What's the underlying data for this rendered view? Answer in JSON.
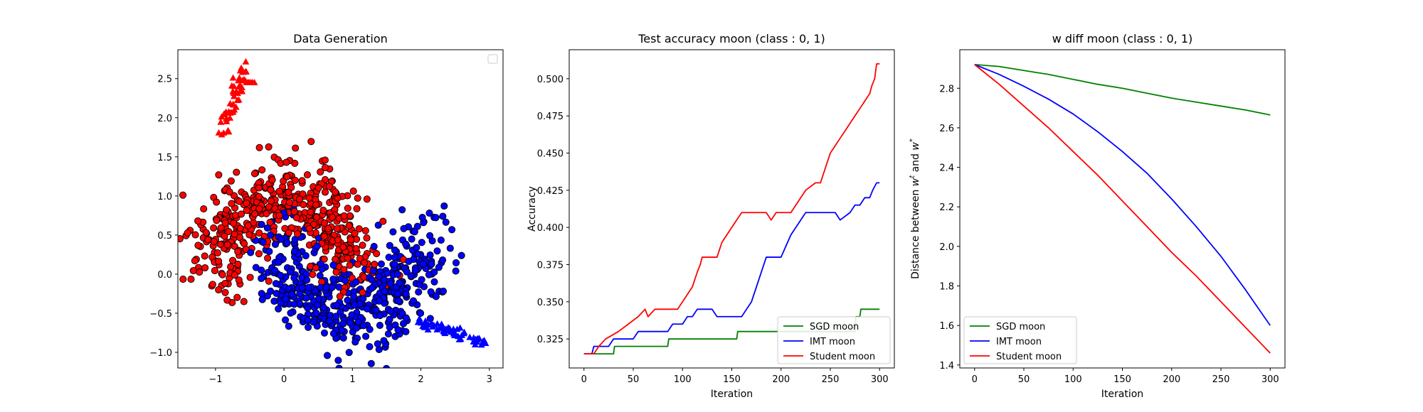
{
  "chart_data": [
    {
      "type": "scatter",
      "title": "Data Generation",
      "xlabel": "",
      "ylabel": "",
      "xlim": [
        -1.55,
        3.2
      ],
      "ylim": [
        -1.2,
        2.87
      ],
      "xticks": [
        -1,
        0,
        1,
        2,
        3
      ],
      "yticks": [
        -1.0,
        -0.5,
        0.0,
        0.5,
        1.0,
        1.5,
        2.0,
        2.5
      ],
      "legend": "top-right",
      "legend_entries": [],
      "colors": {
        "class0": "#ff0000",
        "class1": "#0000ff",
        "edge": "#000000"
      },
      "series": [
        {
          "marker": "circle",
          "color": "#ff0000",
          "description": "two-moons class 0 (upper moon)",
          "center_path": "arc center (0,0) radius 1, x 1.0→-1.0",
          "count": 500,
          "noise": 0.25
        },
        {
          "marker": "circle",
          "color": "#0000ff",
          "description": "two-moons class 1 (lower moon)",
          "center_path": "arc center (1,0.5) radius 1, x 0→2.0",
          "count": 500,
          "noise": 0.25
        },
        {
          "marker": "triangle",
          "color": "#ff0000",
          "x_range": [
            -0.9,
            -0.5
          ],
          "y_range": [
            1.85,
            2.7
          ],
          "count": 60
        },
        {
          "marker": "triangle",
          "color": "#0000ff",
          "x_range": [
            1.95,
            2.97
          ],
          "y_range": [
            -0.93,
            -0.6
          ],
          "count": 60
        }
      ]
    },
    {
      "type": "line",
      "title": "Test accuracy moon (class : 0, 1)",
      "xlabel": "Iteration",
      "ylabel": "Accuracy",
      "xlim": [
        -15,
        315
      ],
      "ylim": [
        0.3055,
        0.5195
      ],
      "xticks": [
        0,
        50,
        100,
        150,
        200,
        250,
        300
      ],
      "yticks": [
        0.325,
        0.35,
        0.375,
        0.4,
        0.425,
        0.45,
        0.475,
        0.5
      ],
      "ytick_labels": [
        "0.325",
        "0.350",
        "0.375",
        "0.400",
        "0.425",
        "0.450",
        "0.475",
        "0.500"
      ],
      "legend": "bottom-right",
      "series": [
        {
          "name": "SGD moon",
          "color": "#008000",
          "x": [
            0,
            30,
            31,
            85,
            86,
            155,
            156,
            275,
            276,
            280,
            281,
            290,
            300
          ],
          "y": [
            0.315,
            0.315,
            0.32,
            0.32,
            0.325,
            0.325,
            0.33,
            0.33,
            0.34,
            0.34,
            0.345,
            0.345,
            0.345
          ]
        },
        {
          "name": "IMT moon",
          "color": "#0000ff",
          "x": [
            0,
            8,
            10,
            25,
            30,
            50,
            55,
            85,
            90,
            100,
            105,
            110,
            115,
            130,
            135,
            160,
            165,
            170,
            175,
            180,
            185,
            190,
            200,
            210,
            215,
            220,
            225,
            255,
            260,
            270,
            275,
            280,
            285,
            290,
            293,
            297,
            300
          ],
          "y": [
            0.315,
            0.315,
            0.32,
            0.32,
            0.325,
            0.325,
            0.33,
            0.33,
            0.335,
            0.335,
            0.34,
            0.34,
            0.345,
            0.345,
            0.34,
            0.34,
            0.345,
            0.35,
            0.36,
            0.37,
            0.38,
            0.38,
            0.38,
            0.395,
            0.4,
            0.405,
            0.41,
            0.41,
            0.405,
            0.41,
            0.415,
            0.415,
            0.42,
            0.42,
            0.425,
            0.43,
            0.43
          ]
        },
        {
          "name": "Student moon",
          "color": "#ff0000",
          "x": [
            0,
            10,
            15,
            22,
            35,
            45,
            55,
            62,
            65,
            72,
            85,
            95,
            100,
            105,
            110,
            115,
            118,
            120,
            125,
            135,
            140,
            145,
            150,
            155,
            160,
            185,
            190,
            195,
            210,
            215,
            220,
            225,
            235,
            240,
            245,
            250,
            255,
            260,
            265,
            270,
            275,
            280,
            285,
            290,
            292,
            295,
            297,
            300
          ],
          "y": [
            0.315,
            0.315,
            0.32,
            0.325,
            0.33,
            0.335,
            0.34,
            0.345,
            0.34,
            0.345,
            0.345,
            0.345,
            0.35,
            0.355,
            0.36,
            0.37,
            0.375,
            0.38,
            0.38,
            0.38,
            0.39,
            0.395,
            0.4,
            0.405,
            0.41,
            0.41,
            0.405,
            0.41,
            0.41,
            0.415,
            0.42,
            0.425,
            0.43,
            0.43,
            0.44,
            0.45,
            0.455,
            0.46,
            0.465,
            0.47,
            0.475,
            0.48,
            0.485,
            0.49,
            0.495,
            0.5,
            0.51,
            0.51
          ]
        }
      ]
    },
    {
      "type": "line",
      "title": "w diff moon (class : 0, 1)",
      "xlabel": "Iteration",
      "ylabel_prefix": "Distance between ",
      "ylabel_var1": "w",
      "ylabel_sup1": "t",
      "ylabel_mid": " and ",
      "ylabel_var2": "w",
      "ylabel_sup2": "*",
      "xlim": [
        -15,
        315
      ],
      "ylim": [
        1.385,
        2.995
      ],
      "xticks": [
        0,
        50,
        100,
        150,
        200,
        250,
        300
      ],
      "yticks": [
        1.4,
        1.6,
        1.8,
        2.0,
        2.2,
        2.4,
        2.6,
        2.8
      ],
      "legend": "bottom-left",
      "series": [
        {
          "name": "SGD moon",
          "color": "#008000",
          "x": [
            0,
            25,
            50,
            75,
            100,
            125,
            150,
            175,
            200,
            225,
            250,
            275,
            300
          ],
          "y": [
            2.92,
            2.91,
            2.89,
            2.87,
            2.845,
            2.82,
            2.8,
            2.775,
            2.75,
            2.73,
            2.71,
            2.69,
            2.665
          ]
        },
        {
          "name": "IMT moon",
          "color": "#0000ff",
          "x": [
            0,
            25,
            50,
            75,
            100,
            125,
            150,
            175,
            200,
            225,
            250,
            275,
            300
          ],
          "y": [
            2.92,
            2.87,
            2.81,
            2.745,
            2.67,
            2.58,
            2.48,
            2.37,
            2.24,
            2.1,
            1.95,
            1.78,
            1.6
          ]
        },
        {
          "name": "Student moon",
          "color": "#ff0000",
          "x": [
            0,
            25,
            50,
            75,
            100,
            125,
            150,
            175,
            200,
            225,
            250,
            275,
            300
          ],
          "y": [
            2.92,
            2.82,
            2.71,
            2.6,
            2.48,
            2.36,
            2.23,
            2.1,
            1.97,
            1.85,
            1.72,
            1.59,
            1.46
          ]
        }
      ]
    }
  ]
}
